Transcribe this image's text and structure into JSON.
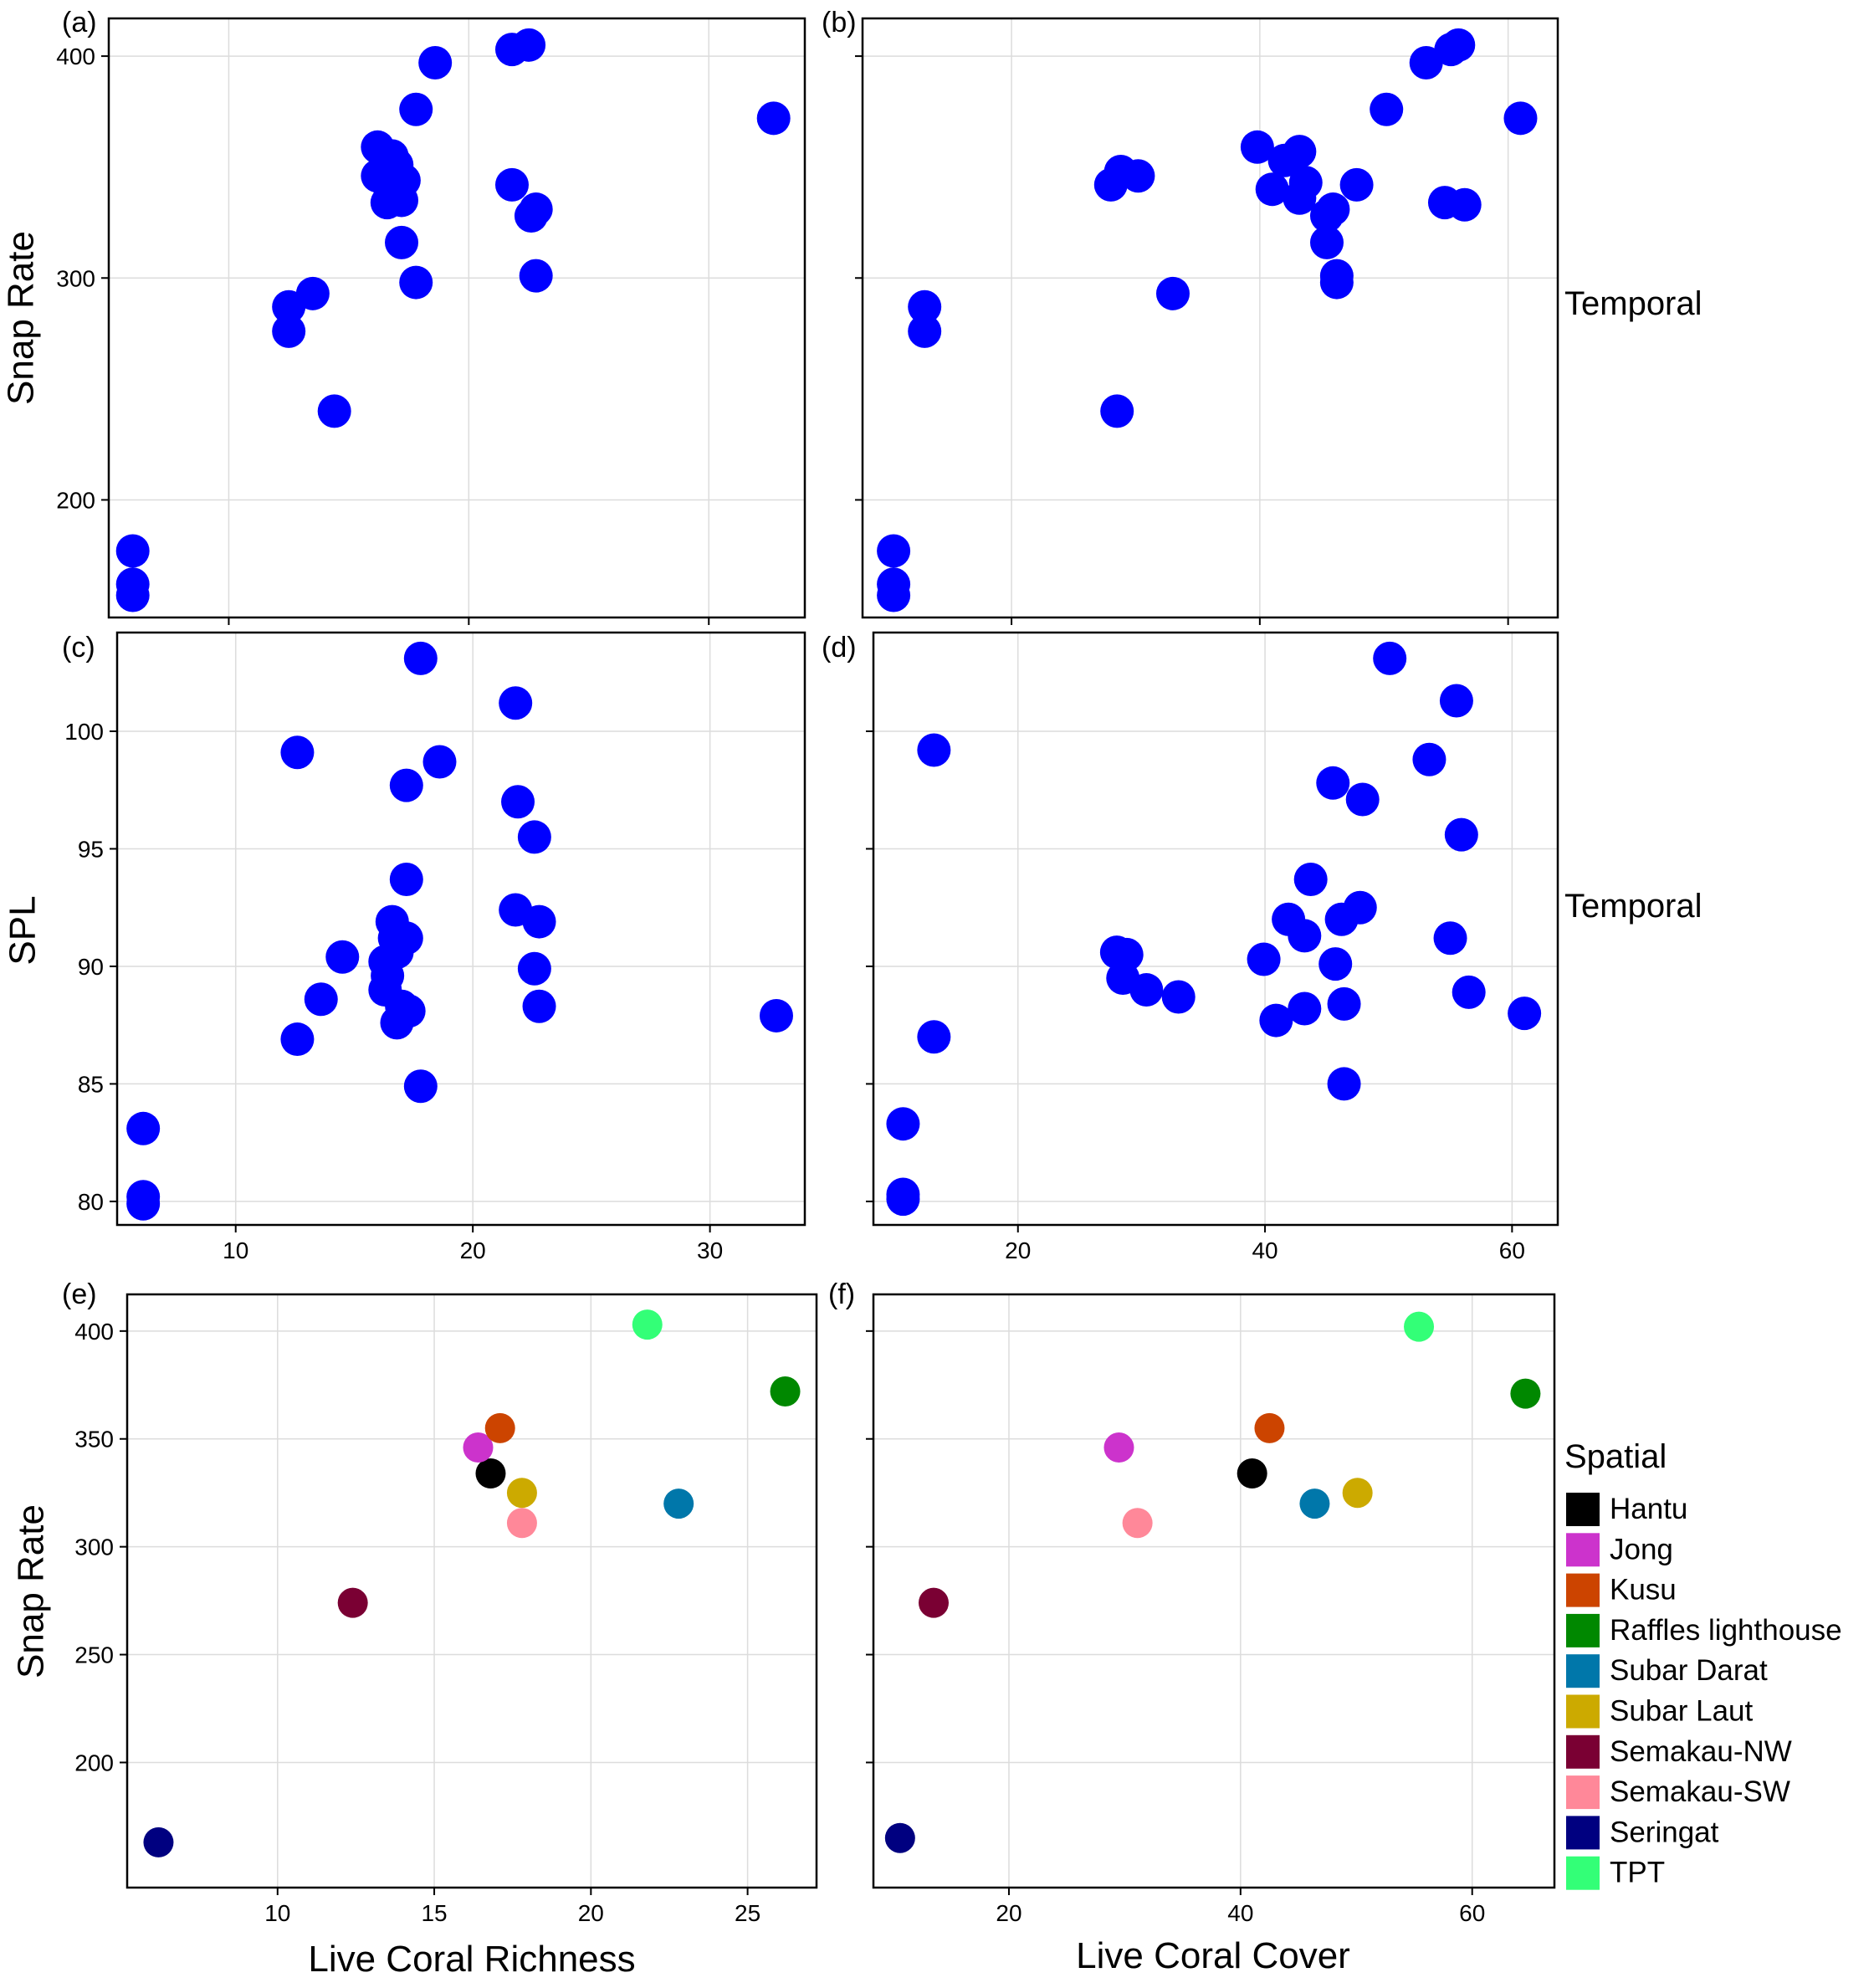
{
  "chart_data": [
    {
      "panel": "(a)",
      "type": "scatter",
      "xlabel": "",
      "ylabel": "Snap Rate",
      "side_label": "Temporal",
      "xlim": [
        5,
        34
      ],
      "ylim": [
        147,
        417
      ],
      "xticks": [
        10,
        20,
        30
      ],
      "yticks": [
        200,
        300,
        400
      ],
      "color": "#0000ff",
      "x": [
        6,
        6,
        6,
        12.5,
        12.5,
        13.5,
        14.4,
        16.2,
        16.2,
        16.6,
        16.6,
        16.8,
        17,
        17.2,
        17.2,
        17.3,
        17.8,
        17.8,
        18.6,
        21.8,
        21.8,
        22.5,
        22.6,
        22.8,
        22.8,
        32.7
      ],
      "y": [
        177,
        162,
        157,
        287,
        276,
        293,
        240,
        359,
        346,
        343,
        334,
        355,
        351,
        335,
        316,
        344,
        376,
        298,
        397,
        403,
        342,
        405,
        328,
        331,
        301,
        372
      ]
    },
    {
      "panel": "(b)",
      "type": "scatter",
      "xlabel": "",
      "ylabel": "",
      "xlim": [
        8,
        64
      ],
      "ylim": [
        147,
        417
      ],
      "xticks": [
        20,
        40,
        60
      ],
      "yticks": [
        200,
        300,
        400
      ],
      "color": "#0000ff",
      "x": [
        10.5,
        10.5,
        10.5,
        13,
        13,
        28,
        28.5,
        28.8,
        30.2,
        33,
        39.8,
        41,
        42,
        43.2,
        43.2,
        43.7,
        45.4,
        45.4,
        45.9,
        46.2,
        46.2,
        47.8,
        50.2,
        53.4,
        55.4,
        56,
        54.9,
        56.5,
        61
      ],
      "y": [
        177,
        162,
        157,
        287,
        276,
        342,
        240,
        348,
        346,
        293,
        359,
        340,
        353,
        357,
        336,
        343,
        328,
        316,
        331,
        301,
        298,
        342,
        376,
        397,
        403,
        405,
        334,
        333,
        372
      ]
    },
    {
      "panel": "(c)",
      "type": "scatter",
      "xlabel": "",
      "ylabel": "SPL",
      "side_label": "Temporal",
      "xlim": [
        5,
        34
      ],
      "ylim": [
        79,
        104.2
      ],
      "xticks": [
        10,
        20,
        30
      ],
      "yticks": [
        80,
        85,
        90,
        95,
        100
      ],
      "color": "#0000ff",
      "x": [
        6.1,
        6.1,
        6.1,
        12.6,
        12.6,
        13.6,
        14.5,
        16.3,
        16.3,
        16.4,
        16.6,
        16.7,
        16.8,
        16.8,
        17,
        17.2,
        17.2,
        17.2,
        17.3,
        17.8,
        17.8,
        18.6,
        21.8,
        21.8,
        21.9,
        22.6,
        22.6,
        22.8,
        22.8,
        32.8
      ],
      "y": [
        83.1,
        80.2,
        79.9,
        99.1,
        86.9,
        88.6,
        90.4,
        90.2,
        89,
        89.6,
        91.9,
        91.2,
        90.6,
        87.6,
        88.3,
        97.7,
        93.7,
        91.2,
        88.1,
        103.1,
        84.9,
        98.7,
        101.2,
        92.4,
        97,
        95.5,
        89.9,
        91.9,
        88.3,
        87.9
      ]
    },
    {
      "panel": "(d)",
      "type": "scatter",
      "xlabel": "",
      "ylabel": "",
      "xlim": [
        8.3,
        63.7
      ],
      "ylim": [
        79,
        104.2
      ],
      "xticks": [
        20,
        40,
        60
      ],
      "yticks": [
        80,
        85,
        90,
        95,
        100
      ],
      "color": "#0000ff",
      "x": [
        10.7,
        10.7,
        10.7,
        13.2,
        13.2,
        28,
        28.5,
        28.8,
        30.4,
        33,
        39.9,
        40.9,
        41.9,
        43.2,
        43.2,
        43.7,
        45.5,
        45.7,
        46.2,
        46.4,
        46.4,
        47.7,
        47.9,
        50.1,
        53.3,
        55,
        55.5,
        55.9,
        56.5,
        61
      ],
      "y": [
        83.3,
        80.3,
        80.1,
        99.2,
        87,
        90.6,
        89.5,
        90.5,
        89,
        88.7,
        90.3,
        87.7,
        92,
        91.3,
        88.2,
        93.7,
        97.8,
        90.1,
        92,
        88.4,
        85,
        92.5,
        97.1,
        103.1,
        98.8,
        91.2,
        101.3,
        95.6,
        88.9,
        88
      ]
    },
    {
      "panel": "(e)",
      "type": "scatter",
      "xlabel": "Live Coral Richness",
      "ylabel": "Snap Rate",
      "xlim": [
        5.2,
        27.2
      ],
      "ylim": [
        142,
        417
      ],
      "xticks": [
        10,
        15,
        20,
        25
      ],
      "yticks": [
        200,
        250,
        300,
        350,
        400
      ],
      "points": [
        {
          "site": "Hantu",
          "x": 16.8,
          "y": 334
        },
        {
          "site": "Jong",
          "x": 16.4,
          "y": 346
        },
        {
          "site": "Kusu",
          "x": 17.1,
          "y": 355
        },
        {
          "site": "Raffles lighthouse",
          "x": 26.2,
          "y": 372
        },
        {
          "site": "Subar Darat",
          "x": 22.8,
          "y": 320
        },
        {
          "site": "Subar Laut",
          "x": 17.8,
          "y": 325
        },
        {
          "site": "Semakau-NW",
          "x": 12.4,
          "y": 274
        },
        {
          "site": "Semakau-SW",
          "x": 17.8,
          "y": 311
        },
        {
          "site": "Seringat",
          "x": 6.2,
          "y": 163
        },
        {
          "site": "TPT",
          "x": 21.8,
          "y": 403
        }
      ]
    },
    {
      "panel": "(f)",
      "type": "scatter",
      "xlabel": "Live Coral Cover",
      "ylabel": "",
      "xlim": [
        8.3,
        67.1
      ],
      "ylim": [
        142,
        417
      ],
      "xticks": [
        20,
        40,
        60
      ],
      "yticks": [
        200,
        250,
        300,
        350,
        400
      ],
      "points": [
        {
          "site": "Hantu",
          "x": 41,
          "y": 334
        },
        {
          "site": "Jong",
          "x": 29.5,
          "y": 346
        },
        {
          "site": "Kusu",
          "x": 42.5,
          "y": 355
        },
        {
          "site": "Raffles lighthouse",
          "x": 64.6,
          "y": 371
        },
        {
          "site": "Subar Darat",
          "x": 46.4,
          "y": 320
        },
        {
          "site": "Subar Laut",
          "x": 50.1,
          "y": 325
        },
        {
          "site": "Semakau-NW",
          "x": 13.5,
          "y": 274
        },
        {
          "site": "Semakau-SW",
          "x": 31.1,
          "y": 311
        },
        {
          "site": "Seringat",
          "x": 10.6,
          "y": 165
        },
        {
          "site": "TPT",
          "x": 55.4,
          "y": 402
        }
      ]
    }
  ],
  "legend": {
    "title": "Spatial",
    "entries": [
      {
        "name": "Hantu",
        "color": "#000000"
      },
      {
        "name": "Jong",
        "color": "#cc33cc"
      },
      {
        "name": "Kusu",
        "color": "#cc4400"
      },
      {
        "name": "Raffles lighthouse",
        "color": "#008800"
      },
      {
        "name": "Subar Darat",
        "color": "#0077aa"
      },
      {
        "name": "Subar Laut",
        "color": "#ccaa00"
      },
      {
        "name": "Semakau-NW",
        "color": "#7a0033"
      },
      {
        "name": "Semakau-SW",
        "color": "#ff8899"
      },
      {
        "name": "Seringat",
        "color": "#000080"
      },
      {
        "name": "TPT",
        "color": "#33ff77"
      }
    ]
  }
}
